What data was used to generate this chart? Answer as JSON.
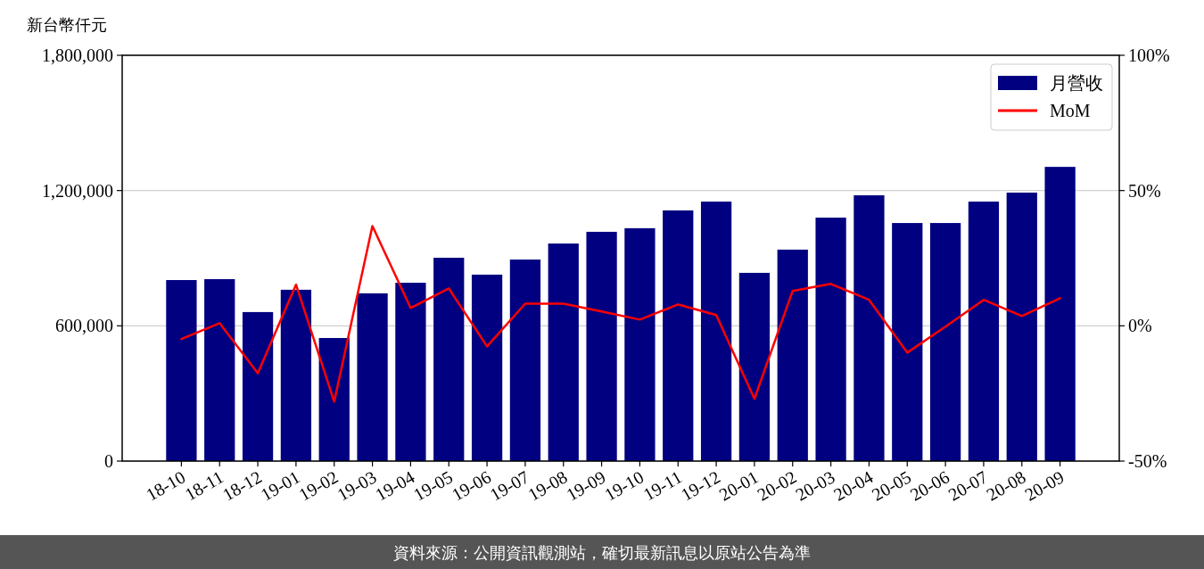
{
  "chart_data": {
    "type": "bar",
    "ylabel": "新台幣仟元",
    "categories": [
      "18-10",
      "18-11",
      "18-12",
      "19-01",
      "19-02",
      "19-03",
      "19-04",
      "19-05",
      "19-06",
      "19-07",
      "19-08",
      "19-09",
      "19-10",
      "19-11",
      "19-12",
      "20-01",
      "20-02",
      "20-03",
      "20-04",
      "20-05",
      "20-06",
      "20-07",
      "20-08",
      "20-09"
    ],
    "series": [
      {
        "name": "月營收",
        "color": "#000080",
        "values": [
          803000,
          807000,
          661000,
          760000,
          546000,
          744000,
          791000,
          902000,
          827000,
          894000,
          965000,
          1017000,
          1033000,
          1112000,
          1151000,
          835000,
          938000,
          1080000,
          1179000,
          1056000,
          1056000,
          1151000,
          1191000,
          1305000
        ]
      },
      {
        "name": "MoM",
        "type": "line",
        "axis": "y2",
        "color": "#ff0000",
        "values": [
          -4.9,
          1.0,
          -17.5,
          15.2,
          -28.0,
          36.9,
          6.6,
          13.8,
          -7.6,
          8.2,
          8.2,
          5.3,
          2.3,
          7.9,
          4.0,
          -27.0,
          12.9,
          15.5,
          9.6,
          -9.9,
          -0.3,
          9.6,
          3.6,
          10.2
        ]
      }
    ],
    "ylim": [
      0,
      1800000
    ],
    "yticks": [
      {
        "value": 0,
        "label": "0"
      },
      {
        "value": 600000,
        "label": "600,000"
      },
      {
        "value": 1200000,
        "label": "1,200,000"
      },
      {
        "value": 1800000,
        "label": "1,800,000"
      }
    ],
    "y2lim": [
      -50,
      100
    ],
    "y2ticks": [
      {
        "value": -50,
        "label": "-50%"
      },
      {
        "value": 0,
        "label": "0%"
      },
      {
        "value": 50,
        "label": "50%"
      },
      {
        "value": 100,
        "label": "100%"
      }
    ],
    "grid": "y",
    "legend": "top right",
    "marker": "none",
    "line_style": "solid",
    "annotations": [
      "資料來源：公開資訊觀測站，確切最新訊息以原站公告為準"
    ]
  }
}
